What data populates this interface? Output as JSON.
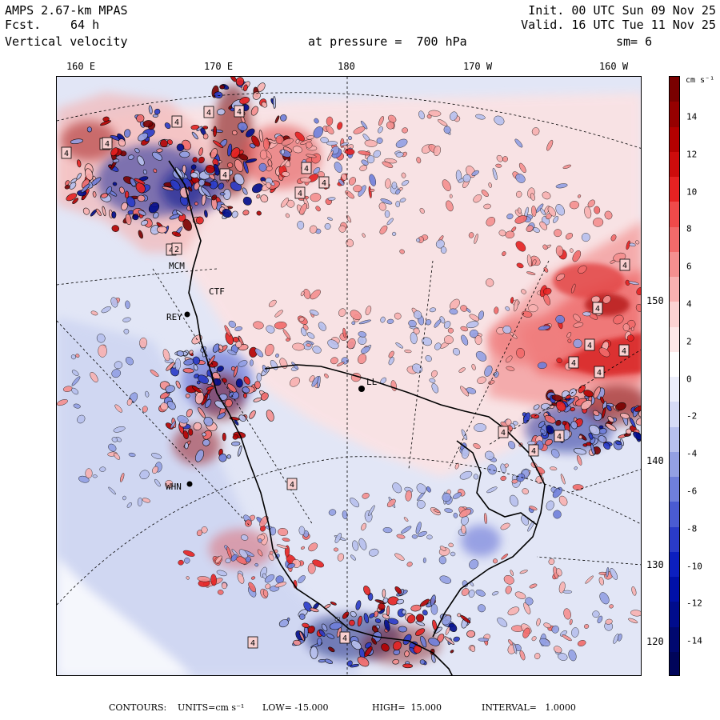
{
  "header": {
    "model": "AMPS 2.67-km MPAS",
    "forecast_label": "Fcst.",
    "forecast_value": "64 h",
    "field": "Vertical velocity",
    "init": "Init. 00 UTC Sun 09 Nov 25",
    "valid": "Valid. 16 UTC Tue 11 Nov 25",
    "pressure": "at pressure =  700 hPa",
    "smoothing": "sm= 6"
  },
  "longitude_labels": [
    "160 E",
    "170 E",
    "180",
    "170 W",
    "160 W"
  ],
  "latitude_labels": [
    "150 W",
    "140 W",
    "130 W",
    "120 W"
  ],
  "stations": [
    "MCM",
    "REY",
    "WHN",
    "CTF",
    "LL"
  ],
  "contour_boxes": [
    "4",
    "4",
    "4",
    "4",
    "4",
    "4",
    "4",
    "4",
    "4",
    "4",
    "4",
    "4",
    "4",
    "4",
    "4",
    "4",
    "4",
    "4",
    "4",
    "2",
    "4",
    "4",
    "4",
    "4",
    "4"
  ],
  "colorbar": {
    "unit": "cm s⁻¹",
    "ticks": [
      "14",
      "12",
      "10",
      "8",
      "6",
      "4",
      "2",
      "0",
      "-2",
      "-4",
      "-6",
      "-8",
      "-10",
      "-12",
      "-14"
    ],
    "colors": [
      "#7a0000",
      "#960000",
      "#b40000",
      "#cd0c0c",
      "#e62222",
      "#f04a4a",
      "#f26a6a",
      "#f58f8f",
      "#f9b1b1",
      "#fbd2d2",
      "#fde8e8",
      "#ffffff",
      "#eceefb",
      "#d6dbf6",
      "#b7c0ee",
      "#93a0e4",
      "#6f7fdb",
      "#4a5bd2",
      "#2a3bc8",
      "#0c1fbf",
      "#0010a8",
      "#000c8c",
      "#000870",
      "#00055a"
    ]
  },
  "footer": {
    "contours_label": "CONTOURS:",
    "units": "UNITS=cm s⁻¹",
    "low": "LOW= -15.000",
    "high": "HIGH=  15.000",
    "interval": "INTERVAL=   1.0000"
  }
}
